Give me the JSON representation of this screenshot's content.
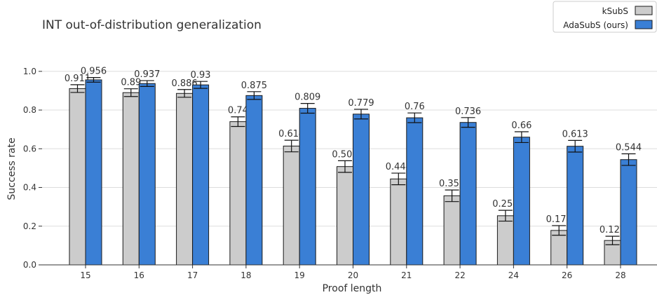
{
  "chart_data": {
    "type": "bar",
    "title": "INT out-of-distribution generalization",
    "xlabel": "Proof length",
    "ylabel": "Success rate",
    "ylim": [
      0,
      1.05
    ],
    "yticks": [
      "0.0",
      "0.2",
      "0.4",
      "0.6",
      "0.8",
      "1.0"
    ],
    "grid": true,
    "legend_position": "top-right",
    "categories": [
      "15",
      "16",
      "17",
      "18",
      "19",
      "20",
      "21",
      "22",
      "24",
      "26",
      "28"
    ],
    "series": [
      {
        "name": "kSubS",
        "color": "#cccccc",
        "values": [
          0.911,
          0.89,
          0.886,
          0.74,
          0.614,
          0.508,
          0.444,
          0.357,
          0.254,
          0.178,
          0.126
        ],
        "errors": [
          0.02,
          0.02,
          0.02,
          0.025,
          0.03,
          0.03,
          0.03,
          0.03,
          0.028,
          0.025,
          0.022
        ]
      },
      {
        "name": "AdaSubS (ours)",
        "color": "#3a7fd5",
        "values": [
          0.956,
          0.937,
          0.93,
          0.875,
          0.809,
          0.779,
          0.76,
          0.736,
          0.66,
          0.613,
          0.544
        ],
        "errors": [
          0.012,
          0.015,
          0.018,
          0.02,
          0.025,
          0.025,
          0.025,
          0.025,
          0.028,
          0.03,
          0.03
        ]
      }
    ]
  }
}
